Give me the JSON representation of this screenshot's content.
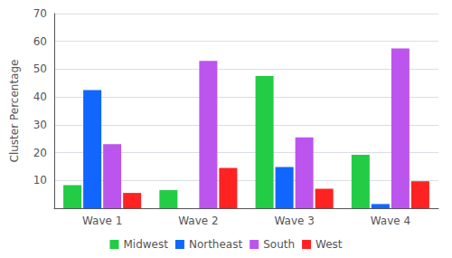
{
  "chart_data": {
    "type": "bar",
    "categories": [
      "Wave 1",
      "Wave 2",
      "Wave 3",
      "Wave 4"
    ],
    "series": [
      {
        "name": "Midwest",
        "color": "#22cc44",
        "values": [
          8.3,
          6.5,
          47.5,
          19.2
        ]
      },
      {
        "name": "Northeast",
        "color": "#1166ff",
        "values": [
          42.5,
          0.0,
          14.8,
          1.5
        ]
      },
      {
        "name": "South",
        "color": "#bb55ee",
        "values": [
          23.0,
          53.0,
          25.5,
          57.5
        ]
      },
      {
        "name": "West",
        "color": "#ff2222",
        "values": [
          5.5,
          14.5,
          7.0,
          9.7
        ]
      }
    ],
    "ylabel": "Cluster Percentage",
    "ylim": [
      0,
      70
    ],
    "yticks": [
      10,
      20,
      30,
      40,
      50,
      60,
      70
    ],
    "grid": true,
    "legend": "bottom"
  }
}
